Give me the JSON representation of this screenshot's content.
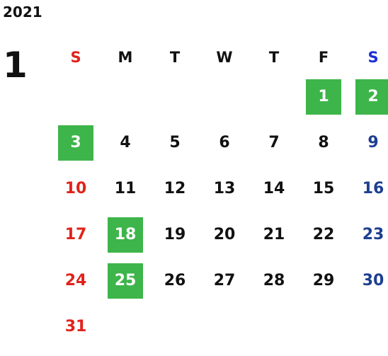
{
  "year": "2021",
  "month": "1",
  "weekdays": [
    "S",
    "M",
    "T",
    "W",
    "T",
    "F",
    "S"
  ],
  "colors": {
    "holiday_bg": "#3db54a",
    "sunday": "#e0231c",
    "saturday": "#1d3f91",
    "saturday_header": "#1a2fd6"
  },
  "first_weekday_index": 5,
  "days_in_month": 31,
  "holidays": [
    1,
    2,
    3,
    18,
    25
  ]
}
